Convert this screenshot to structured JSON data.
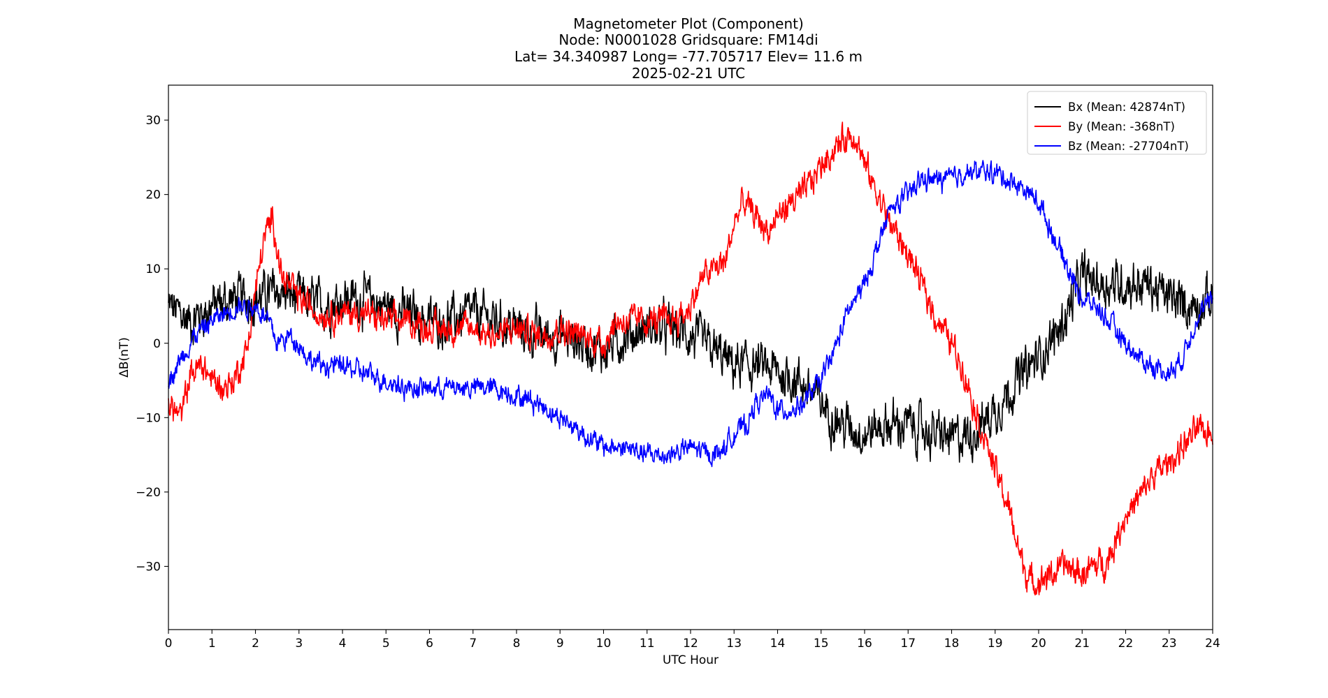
{
  "chart_data": {
    "type": "line",
    "title_lines": [
      "Magnetometer Plot (Component)",
      "Node:  N0001028     Gridsquare:  FM14di",
      "Lat= 34.340987    Long= -77.705717    Elev= 11.6 m",
      "2025-02-21  UTC"
    ],
    "xlabel": "UTC Hour",
    "ylabel": "ΔB(nT)",
    "xlim": [
      0,
      24
    ],
    "ylim": [
      -38.5,
      34.7
    ],
    "xticks": [
      0,
      1,
      2,
      3,
      4,
      5,
      6,
      7,
      8,
      9,
      10,
      11,
      12,
      13,
      14,
      15,
      16,
      17,
      18,
      19,
      20,
      21,
      22,
      23,
      24
    ],
    "yticks": [
      -30,
      -20,
      -10,
      0,
      10,
      20,
      30
    ],
    "ytick_labels": [
      "−30",
      "−20",
      "−10",
      "0",
      "10",
      "20",
      "30"
    ],
    "grid": false,
    "legend_position": "top-right",
    "series": [
      {
        "name": "Bx (Mean: 42874nT)",
        "color": "#000000",
        "noise": 2.2,
        "x": [
          0,
          0.5,
          1,
          1.5,
          2,
          2.5,
          3,
          3.5,
          4,
          4.5,
          5,
          5.5,
          6,
          6.5,
          7,
          7.5,
          8,
          8.5,
          9,
          9.5,
          10,
          10.5,
          11,
          11.5,
          12,
          12.5,
          13,
          13.5,
          14,
          14.5,
          15,
          15.5,
          16,
          16.5,
          17,
          17.5,
          18,
          18.5,
          19,
          19.5,
          20,
          20.5,
          21,
          21.5,
          22,
          22.5,
          23,
          23.5,
          24
        ],
        "y": [
          5,
          3,
          5,
          6,
          6,
          7,
          6,
          5,
          6,
          6,
          5,
          4,
          3,
          3,
          4,
          3,
          2,
          1,
          1,
          0,
          -1,
          1,
          2,
          2,
          1,
          -1,
          -3,
          -3,
          -4,
          -5,
          -8,
          -11,
          -12,
          -11,
          -11,
          -12,
          -13,
          -12,
          -9,
          -5,
          -2,
          2,
          9,
          8,
          8,
          8,
          6,
          5,
          6
        ]
      },
      {
        "name": "By (Mean: -368nT)",
        "color": "#ff0000",
        "noise": 1.4,
        "x": [
          0,
          0.3,
          0.5,
          0.8,
          1,
          1.3,
          1.5,
          1.8,
          2,
          2.2,
          2.4,
          2.6,
          3,
          3.5,
          4,
          4.5,
          5,
          5.5,
          6,
          6.5,
          7,
          7.5,
          8,
          8.5,
          9,
          9.5,
          10,
          10.3,
          10.6,
          11,
          11.5,
          11.9,
          12.3,
          12.8,
          13,
          13.2,
          13.5,
          13.8,
          14,
          14.3,
          14.6,
          15,
          15.3,
          15.6,
          15.8,
          16,
          16.3,
          16.6,
          17,
          17.3,
          17.6,
          18,
          18.3,
          18.6,
          19,
          19.3,
          19.6,
          19.8,
          20,
          20.3,
          20.6,
          21,
          21.3,
          21.6,
          22,
          22.3,
          22.6,
          23,
          23.3,
          23.6,
          24
        ],
        "y": [
          -8,
          -10,
          -4,
          -3,
          -5,
          -6,
          -5,
          -1,
          7,
          14,
          17,
          9,
          6,
          4,
          4,
          4,
          3,
          3,
          2,
          2,
          2,
          1,
          2,
          1,
          2,
          1,
          0,
          3,
          3,
          3,
          3,
          4,
          9,
          11,
          16,
          19,
          17,
          15,
          17,
          19,
          20,
          24,
          26,
          28,
          28,
          24,
          20,
          16,
          12,
          8,
          4,
          0,
          -4,
          -10,
          -17,
          -22,
          -29,
          -32,
          -32,
          -31,
          -30,
          -31,
          -30,
          -29,
          -23,
          -21,
          -18,
          -16,
          -14,
          -12,
          -12
        ]
      },
      {
        "name": "Bz (Mean: -27704nT)",
        "color": "#0000ff",
        "noise": 1.0,
        "x": [
          0,
          0.3,
          0.6,
          1,
          1.3,
          1.6,
          2,
          2.3,
          2.5,
          2.8,
          3,
          3.2,
          3.5,
          4,
          4.5,
          5,
          5.5,
          6,
          6.5,
          7,
          7.5,
          8,
          8.5,
          9,
          9.5,
          10,
          10.5,
          11,
          11.5,
          12,
          12.5,
          12.8,
          13,
          13.3,
          13.5,
          13.8,
          14,
          14.3,
          14.6,
          15,
          15.3,
          15.6,
          16,
          16.3,
          16.6,
          17,
          17.3,
          17.6,
          18,
          18.3,
          18.6,
          19,
          19.3,
          19.6,
          20,
          20.3,
          20.6,
          21,
          21.3,
          21.6,
          22,
          22.3,
          22.6,
          23,
          23.3,
          23.6,
          24
        ],
        "y": [
          -5,
          -2,
          1,
          3,
          4,
          5,
          5,
          3,
          0,
          1,
          0,
          -2,
          -3,
          -3,
          -4,
          -5,
          -6,
          -6,
          -6,
          -6,
          -6,
          -7,
          -8,
          -10,
          -12,
          -14,
          -14,
          -15,
          -15,
          -14,
          -15,
          -14,
          -12,
          -11,
          -8,
          -7,
          -9,
          -9,
          -8,
          -5,
          -1,
          4,
          8,
          13,
          18,
          20,
          22,
          22,
          22,
          23,
          23,
          23,
          22,
          21,
          19,
          15,
          11,
          6,
          5,
          3,
          0,
          -2,
          -3,
          -4,
          -2,
          3,
          6
        ]
      }
    ]
  }
}
